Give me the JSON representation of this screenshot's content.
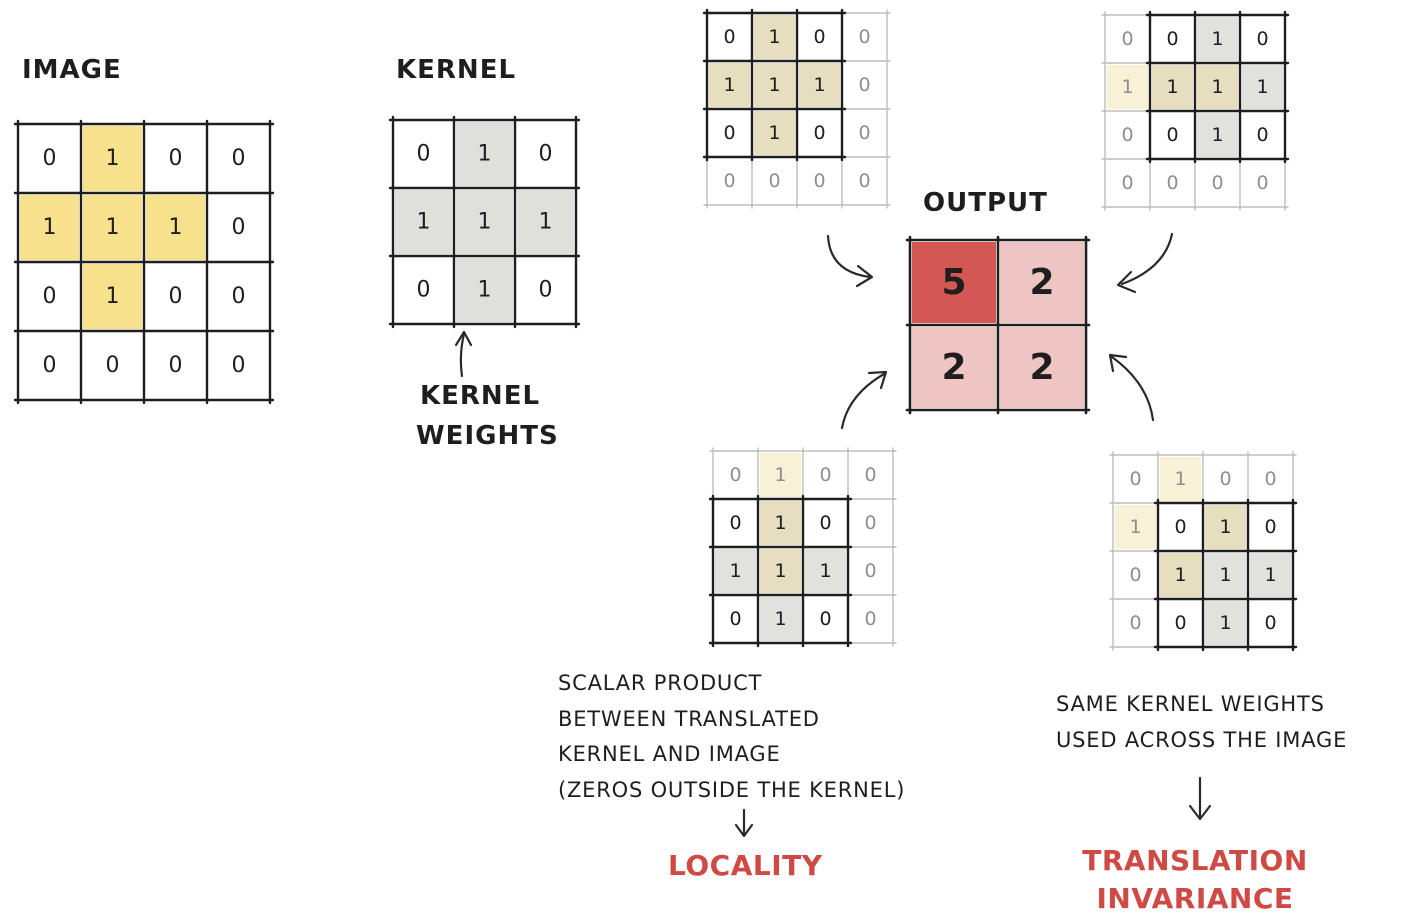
{
  "labels": {
    "image": "IMAGE",
    "kernel": "KERNEL",
    "output": "OUTPUT",
    "kernel_weights": [
      "KERNEL",
      "WEIGHTS"
    ],
    "scalar_note": [
      "SCALAR PRODUCT",
      "BETWEEN TRANSLATED",
      "KERNEL AND IMAGE",
      "(ZEROS OUTSIDE THE KERNEL)"
    ],
    "weights_note": [
      "SAME KERNEL WEIGHTS",
      "USED ACROSS THE IMAGE"
    ],
    "locality": "LOCALITY",
    "translation": [
      "TRANSLATION",
      "INVARIANCE"
    ]
  },
  "image": {
    "values": [
      [
        0,
        1,
        0,
        0
      ],
      [
        1,
        1,
        1,
        0
      ],
      [
        0,
        1,
        0,
        0
      ],
      [
        0,
        0,
        0,
        0
      ]
    ],
    "highlight": [
      [
        0,
        1,
        0,
        0
      ],
      [
        1,
        1,
        1,
        0
      ],
      [
        0,
        1,
        0,
        0
      ],
      [
        0,
        0,
        0,
        0
      ]
    ]
  },
  "kernel": {
    "values": [
      [
        0,
        1,
        0
      ],
      [
        1,
        1,
        1
      ],
      [
        0,
        1,
        0
      ]
    ],
    "shade": [
      [
        0,
        1,
        0
      ],
      [
        1,
        1,
        1
      ],
      [
        0,
        1,
        0
      ]
    ]
  },
  "output": {
    "values": [
      [
        5,
        2
      ],
      [
        2,
        2
      ]
    ],
    "intensity": [
      [
        1.0,
        0.35
      ],
      [
        0.35,
        0.35
      ]
    ]
  },
  "translations": [
    {
      "name": "top-left",
      "grid": [
        [
          0,
          1,
          0,
          0
        ],
        [
          1,
          1,
          1,
          0
        ],
        [
          0,
          1,
          0,
          0
        ],
        [
          0,
          0,
          0,
          0
        ]
      ],
      "kernel_origin": [
        0,
        0
      ],
      "highlight": [
        [
          0,
          1,
          0,
          0
        ],
        [
          1,
          1,
          1,
          0
        ],
        [
          0,
          1,
          0,
          0
        ],
        [
          0,
          0,
          0,
          0
        ]
      ],
      "output_cell": [
        0,
        0
      ]
    },
    {
      "name": "top-right",
      "grid": [
        [
          0,
          0,
          1,
          0
        ],
        [
          1,
          1,
          1,
          1
        ],
        [
          0,
          0,
          1,
          0
        ],
        [
          0,
          0,
          0,
          0
        ]
      ],
      "kernel_origin": [
        0,
        1
      ],
      "highlight": [
        [
          0,
          1,
          0,
          0
        ],
        [
          1,
          1,
          1,
          0
        ],
        [
          0,
          1,
          0,
          0
        ],
        [
          0,
          0,
          0,
          0
        ]
      ],
      "output_cell": [
        0,
        1
      ]
    },
    {
      "name": "bottom-left",
      "grid": [
        [
          0,
          1,
          0,
          0
        ],
        [
          0,
          1,
          0,
          0
        ],
        [
          1,
          1,
          1,
          0
        ],
        [
          0,
          1,
          0,
          0
        ]
      ],
      "kernel_origin": [
        1,
        0
      ],
      "highlight": [
        [
          0,
          1,
          0,
          0
        ],
        [
          1,
          1,
          1,
          0
        ],
        [
          0,
          1,
          0,
          0
        ],
        [
          0,
          0,
          0,
          0
        ]
      ],
      "output_cell": [
        1,
        0
      ]
    },
    {
      "name": "bottom-right",
      "grid": [
        [
          0,
          1,
          0,
          0
        ],
        [
          1,
          0,
          1,
          0
        ],
        [
          0,
          1,
          1,
          1
        ],
        [
          0,
          0,
          1,
          0
        ]
      ],
      "kernel_origin": [
        1,
        1
      ],
      "highlight": [
        [
          0,
          1,
          0,
          0
        ],
        [
          1,
          1,
          1,
          0
        ],
        [
          0,
          1,
          0,
          0
        ],
        [
          0,
          0,
          0,
          0
        ]
      ],
      "output_cell": [
        1,
        1
      ]
    }
  ],
  "colors": {
    "ink": "#1e1e1e",
    "image_highlight": "#f6d96b",
    "kernel_shade": "#d9d9d6",
    "faint_ink": "#8f8f8f",
    "faint_grid": "#bdbdbd",
    "faint_highlight": "#f8f1d6",
    "output_strong": "#cf4a45",
    "output_light": "#f0b8b8",
    "accent_text": "#cf4a45",
    "arrow": "#2a2a2a"
  }
}
